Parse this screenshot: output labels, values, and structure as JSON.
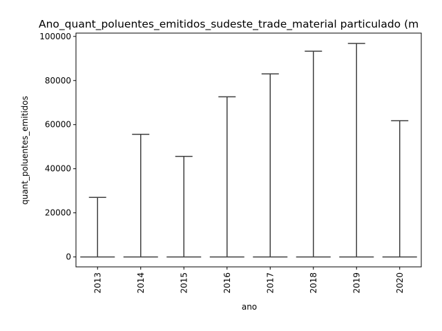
{
  "chart_data": {
    "type": "box",
    "title": "Ano_quant_poluentes_emitidos_sudeste_trade_material particulado (m",
    "xlabel": "ano",
    "ylabel": "quant_poluentes_emitidos",
    "categories": [
      "2013",
      "2014",
      "2015",
      "2016",
      "2017",
      "2018",
      "2019",
      "2020"
    ],
    "whisker_high": [
      27000,
      55600,
      45600,
      72600,
      83000,
      93300,
      96800,
      61800
    ],
    "box_values": [
      0,
      0,
      0,
      0,
      0,
      0,
      0,
      0
    ],
    "ylim": [
      -4500,
      101500
    ],
    "yticks": [
      0,
      20000,
      40000,
      60000,
      80000,
      100000
    ],
    "ytick_labels": [
      "0",
      "20000",
      "40000",
      "60000",
      "80000",
      "100000"
    ],
    "grid": false,
    "colors": {
      "line": "#3f3f3f",
      "axes": "#000000"
    }
  }
}
